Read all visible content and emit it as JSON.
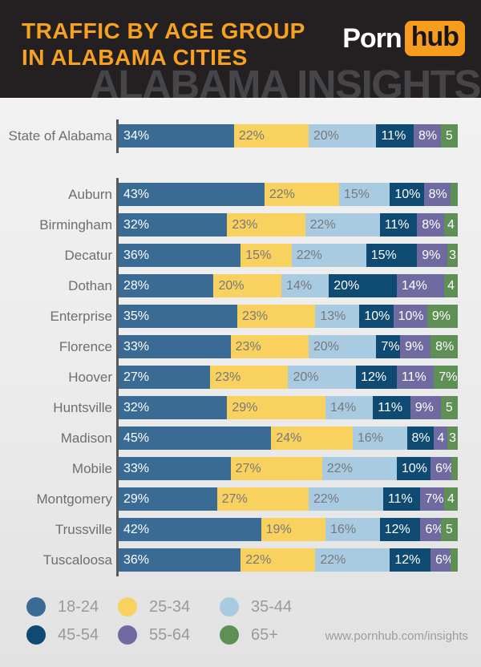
{
  "header": {
    "title_line1": "TRAFFIC BY AGE GROUP",
    "title_line2": "IN ALABAMA CITIES",
    "logo_part1": "Porn",
    "logo_part2": "hub",
    "watermark": "ALABAMA INSIGHTS"
  },
  "footer": {
    "url": "www.pornhub.com/insights"
  },
  "colors": {
    "header_bg": "#242021",
    "title_orange": "#F6A11F",
    "logo_orange": "#F79C1C",
    "watermark_gray": "#46464A",
    "axis_tick": "#58595B",
    "row_label_text": "#6E6E70",
    "legend_label_text": "#9A9A9C",
    "light_segment_text": "#77787B"
  },
  "chart_data": {
    "type": "bar",
    "stacked": true,
    "orientation": "horizontal",
    "title": "Traffic by Age Group in Alabama Cities",
    "unit": "%",
    "xlim": [
      0,
      100
    ],
    "legend_position": "bottom-left",
    "categories": [
      "State of Alabama",
      "Auburn",
      "Birmingham",
      "Decatur",
      "Dothan",
      "Enterprise",
      "Florence",
      "Hoover",
      "Huntsville",
      "Madison",
      "Mobile",
      "Montgomery",
      "Trussville",
      "Tuscaloosa"
    ],
    "series": [
      {
        "name": "18-24",
        "color": "#3A6B94",
        "text_color": "#FFFFFF",
        "values": [
          34,
          43,
          32,
          36,
          28,
          35,
          33,
          27,
          32,
          45,
          33,
          29,
          42,
          36
        ]
      },
      {
        "name": "25-34",
        "color": "#F8D15F",
        "text_color": "#77787B",
        "values": [
          22,
          22,
          23,
          15,
          20,
          23,
          23,
          23,
          29,
          24,
          27,
          27,
          19,
          22
        ]
      },
      {
        "name": "35-44",
        "color": "#A9CBE2",
        "text_color": "#77787B",
        "values": [
          20,
          15,
          22,
          22,
          14,
          13,
          20,
          20,
          14,
          16,
          22,
          22,
          16,
          22
        ]
      },
      {
        "name": "45-54",
        "color": "#0E4A72",
        "text_color": "#FFFFFF",
        "values": [
          11,
          10,
          11,
          15,
          20,
          10,
          7,
          12,
          11,
          8,
          10,
          11,
          12,
          12
        ]
      },
      {
        "name": "55-64",
        "color": "#6F6BA0",
        "text_color": "#FFFFFF",
        "values": [
          8,
          8,
          8,
          9,
          14,
          10,
          9,
          11,
          9,
          4,
          6,
          7,
          6,
          6
        ]
      },
      {
        "name": "65+",
        "color": "#5E8F55",
        "text_color": "#FFFFFF",
        "values": [
          5,
          2,
          4,
          3,
          4,
          9,
          8,
          7,
          5,
          3,
          2,
          4,
          5,
          2
        ]
      }
    ],
    "display_labels": [
      [
        "34%",
        "22%",
        "20%",
        "11%",
        "8%",
        "5"
      ],
      [
        "43%",
        "22%",
        "15%",
        "10%",
        "8%",
        ""
      ],
      [
        "32%",
        "23%",
        "22%",
        "11%",
        "8%",
        "4"
      ],
      [
        "36%",
        "15%",
        "22%",
        "15%",
        "9%",
        "3"
      ],
      [
        "28%",
        "20%",
        "14%",
        "20%",
        "14%",
        "4"
      ],
      [
        "35%",
        "23%",
        "13%",
        "10%",
        "10%",
        "9%"
      ],
      [
        "33%",
        "23%",
        "20%",
        "7%",
        "9%",
        "8%"
      ],
      [
        "27%",
        "23%",
        "20%",
        "12%",
        "11%",
        "7%"
      ],
      [
        "32%",
        "29%",
        "14%",
        "11%",
        "9%",
        "5"
      ],
      [
        "45%",
        "24%",
        "16%",
        "8%",
        "4",
        "3"
      ],
      [
        "33%",
        "27%",
        "22%",
        "10%",
        "6%",
        ""
      ],
      [
        "29%",
        "27%",
        "22%",
        "11%",
        "7%",
        "4"
      ],
      [
        "42%",
        "19%",
        "16%",
        "12%",
        "6%",
        "5"
      ],
      [
        "36%",
        "22%",
        "22%",
        "12%",
        "6%",
        ""
      ]
    ]
  }
}
